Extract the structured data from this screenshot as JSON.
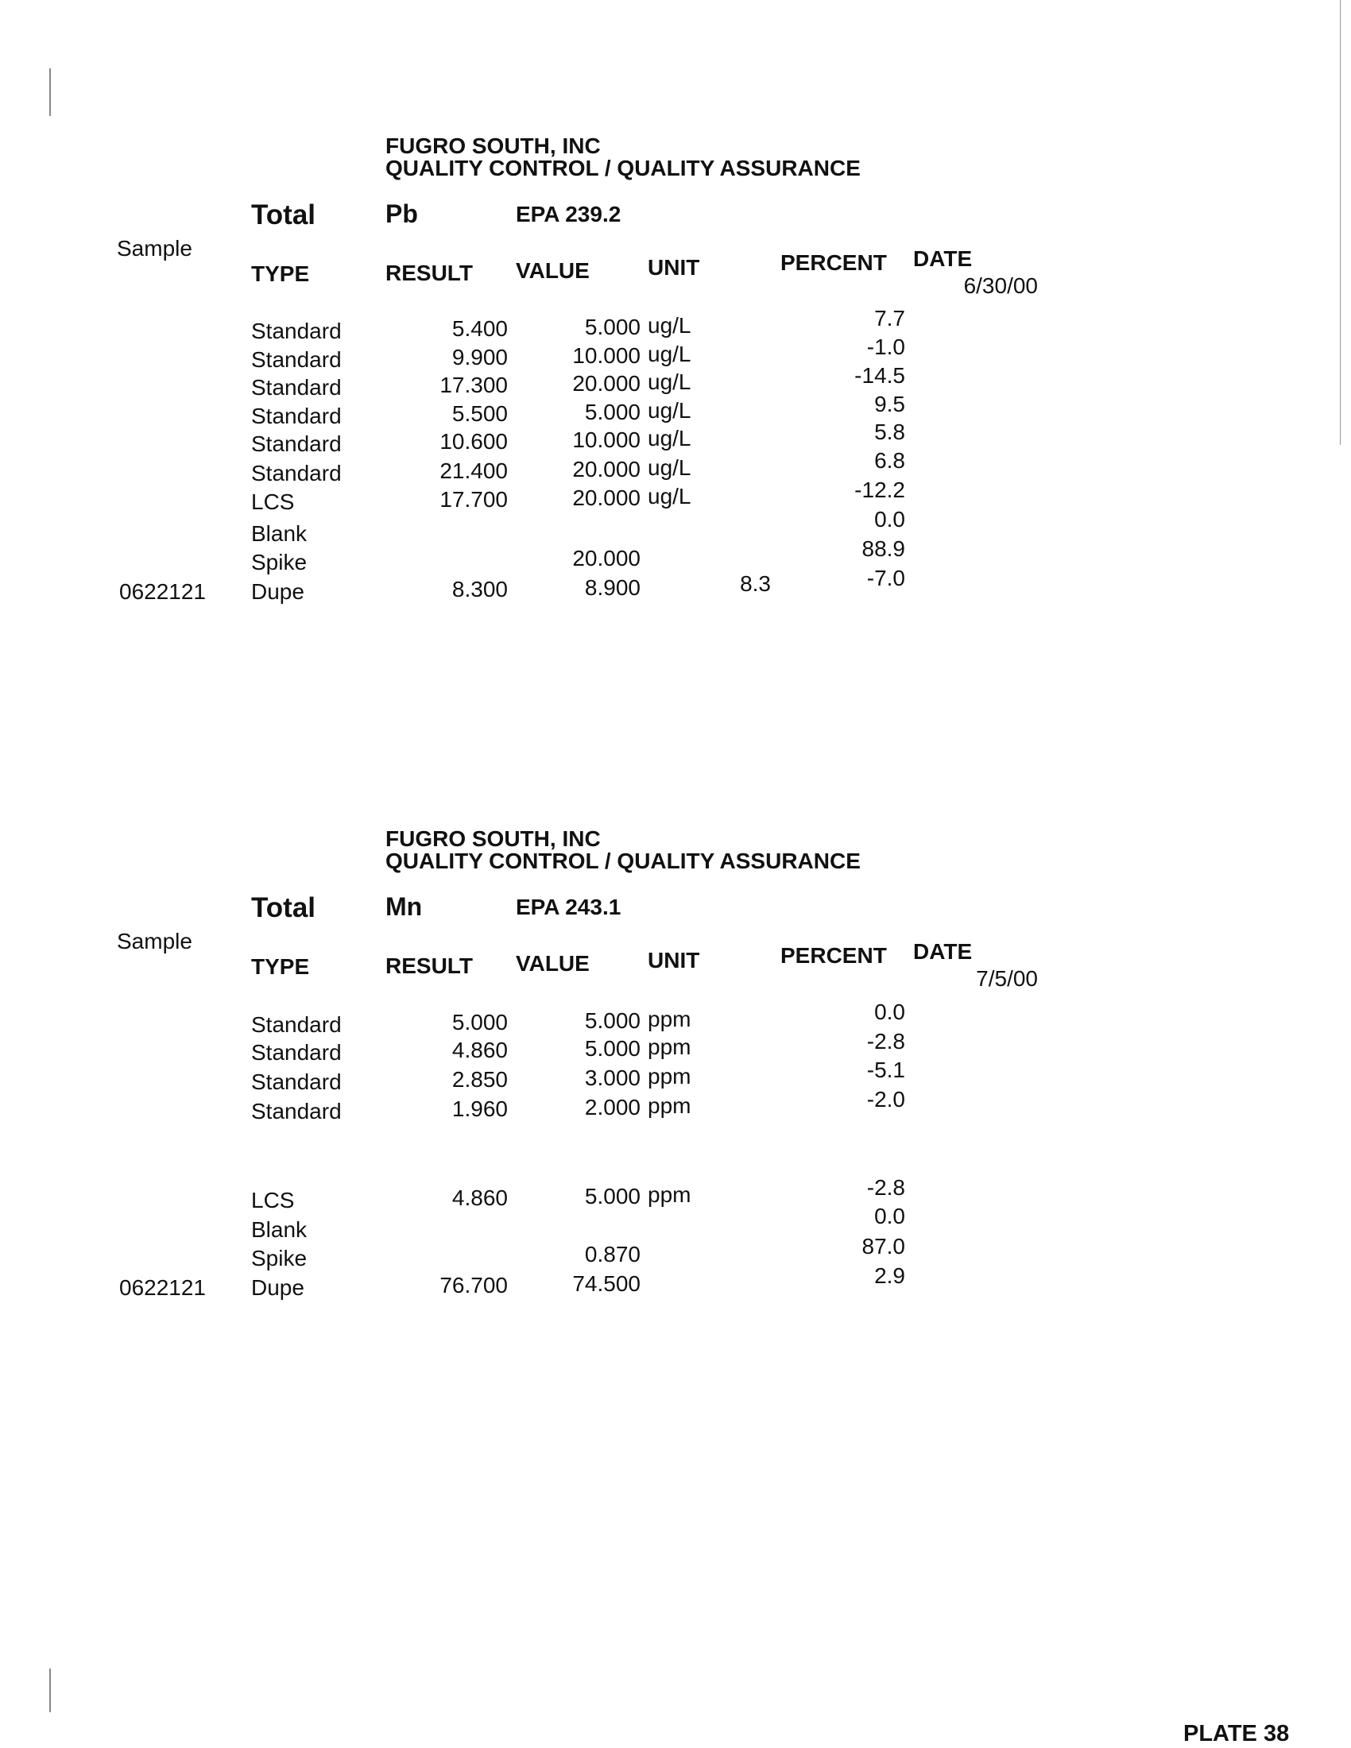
{
  "sections": [
    {
      "company": "FUGRO SOUTH, INC",
      "subtitle": "QUALITY CONTROL / QUALITY ASSURANCE",
      "total_label": "Total",
      "element": "Pb",
      "method": "EPA 239.2",
      "sample_label": "Sample",
      "columns": {
        "type": "TYPE",
        "result": "RESULT",
        "value": "VALUE",
        "unit": "UNIT",
        "percent": "PERCENT",
        "date": "DATE"
      },
      "date": "6/30/00",
      "rows": [
        {
          "sample": "",
          "type": "Standard",
          "result": "5.400",
          "value": "5.000",
          "unit": "ug/L",
          "extra": "",
          "percent": "7.7"
        },
        {
          "sample": "",
          "type": "Standard",
          "result": "9.900",
          "value": "10.000",
          "unit": "ug/L",
          "extra": "",
          "percent": "-1.0"
        },
        {
          "sample": "",
          "type": "Standard",
          "result": "17.300",
          "value": "20.000",
          "unit": "ug/L",
          "extra": "",
          "percent": "-14.5"
        },
        {
          "sample": "",
          "type": "Standard",
          "result": "5.500",
          "value": "5.000",
          "unit": "ug/L",
          "extra": "",
          "percent": "9.5"
        },
        {
          "sample": "",
          "type": "Standard",
          "result": "10.600",
          "value": "10.000",
          "unit": "ug/L",
          "extra": "",
          "percent": "5.8"
        },
        {
          "sample": "",
          "type": "Standard",
          "result": "21.400",
          "value": "20.000",
          "unit": "ug/L",
          "extra": "",
          "percent": "6.8"
        },
        {
          "sample": "",
          "type": "LCS",
          "result": "17.700",
          "value": "20.000",
          "unit": "ug/L",
          "extra": "",
          "percent": "-12.2"
        },
        {
          "sample": "",
          "type": "Blank",
          "result": "",
          "value": "",
          "unit": "",
          "extra": "",
          "percent": "0.0"
        },
        {
          "sample": "",
          "type": "Spike",
          "result": "",
          "value": "20.000",
          "unit": "",
          "extra": "",
          "percent": "88.9"
        },
        {
          "sample": "0622121",
          "type": "Dupe",
          "result": "8.300",
          "value": "8.900",
          "unit": "",
          "extra": "8.3",
          "percent": "-7.0"
        }
      ]
    },
    {
      "company": "FUGRO SOUTH, INC",
      "subtitle": "QUALITY CONTROL / QUALITY ASSURANCE",
      "total_label": "Total",
      "element": "Mn",
      "method": "EPA 243.1",
      "sample_label": "Sample",
      "columns": {
        "type": "TYPE",
        "result": "RESULT",
        "value": "VALUE",
        "unit": "UNIT",
        "percent": "PERCENT",
        "date": "DATE"
      },
      "date": "7/5/00",
      "rows": [
        {
          "sample": "",
          "type": "Standard",
          "result": "5.000",
          "value": "5.000",
          "unit": "ppm",
          "extra": "",
          "percent": "0.0"
        },
        {
          "sample": "",
          "type": "Standard",
          "result": "4.860",
          "value": "5.000",
          "unit": "ppm",
          "extra": "",
          "percent": "-2.8"
        },
        {
          "sample": "",
          "type": "Standard",
          "result": "2.850",
          "value": "3.000",
          "unit": "ppm",
          "extra": "",
          "percent": "-5.1"
        },
        {
          "sample": "",
          "type": "Standard",
          "result": "1.960",
          "value": "2.000",
          "unit": "ppm",
          "extra": "",
          "percent": "-2.0"
        },
        {
          "sample": "",
          "type": "LCS",
          "result": "4.860",
          "value": "5.000",
          "unit": "ppm",
          "extra": "",
          "percent": "-2.8"
        },
        {
          "sample": "",
          "type": "Blank",
          "result": "",
          "value": "",
          "unit": "",
          "extra": "",
          "percent": "0.0"
        },
        {
          "sample": "",
          "type": "Spike",
          "result": "",
          "value": "0.870",
          "unit": "",
          "extra": "",
          "percent": "87.0"
        },
        {
          "sample": "0622121",
          "type": "Dupe",
          "result": "76.700",
          "value": "74.500",
          "unit": "",
          "extra": "",
          "percent": "2.9"
        }
      ]
    }
  ],
  "footer": {
    "plate": "PLATE 38"
  }
}
